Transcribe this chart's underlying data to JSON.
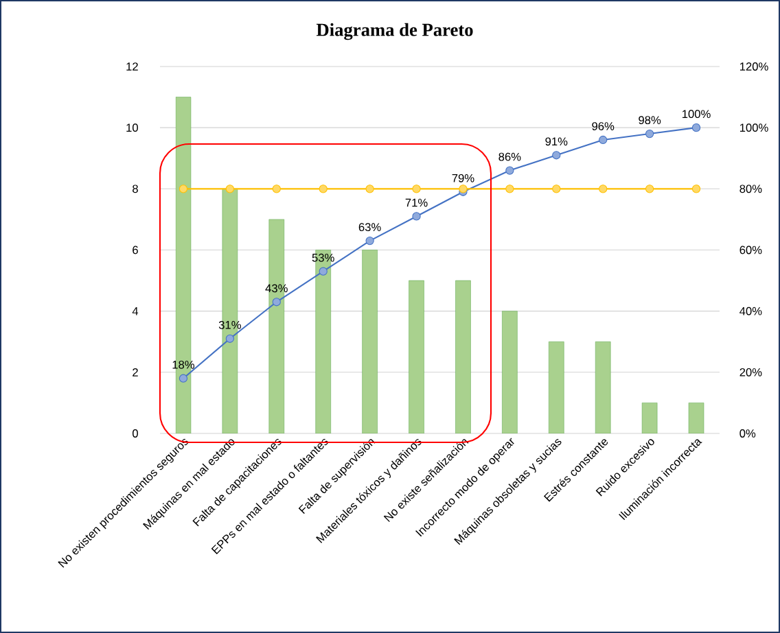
{
  "chart_data": {
    "type": "bar",
    "title": "Diagrama de Pareto",
    "categories": [
      "No existen procedimientos seguros",
      "Máquinas en mal estado",
      "Falta de capacitaciones",
      "EPPs en mal estado o faltantes",
      "Falta de supervisión",
      "Materiales tóxicos y dañinos",
      "No existe señalización",
      "Incorrecto modo de operar",
      "Máquinas obsoletas y sucias",
      "Estrés constante",
      "Ruido excesivo",
      "Iluminación incorrecta"
    ],
    "series": [
      {
        "color": "#a9d18e",
        "values": [
          11,
          8,
          7,
          6,
          6,
          5,
          5,
          4,
          3,
          3,
          1,
          1
        ]
      },
      {
        "type": "line",
        "axis": "y2",
        "color": "#4472c4",
        "values": [
          18,
          31,
          43,
          53,
          63,
          71,
          79,
          86,
          91,
          96,
          98,
          100
        ],
        "value_labels": [
          "18%",
          "31%",
          "43%",
          "53%",
          "63%",
          "71%",
          "79%",
          "86%",
          "91%",
          "96%",
          "98%",
          "100%"
        ]
      },
      {
        "type": "line",
        "axis": "y2",
        "color": "#ffc000",
        "values": [
          80,
          80,
          80,
          80,
          80,
          80,
          80,
          80,
          80,
          80,
          80,
          80
        ]
      }
    ],
    "ylim": [
      0,
      12
    ],
    "yticks": [
      0,
      2,
      4,
      6,
      8,
      10,
      12
    ],
    "y2lim": [
      0,
      120
    ],
    "y2ticks": [
      {
        "value": 0,
        "label": "0%"
      },
      {
        "value": 20,
        "label": "20%"
      },
      {
        "value": 40,
        "label": "40%"
      },
      {
        "value": 60,
        "label": "60%"
      },
      {
        "value": 80,
        "label": "80%"
      },
      {
        "value": 100,
        "label": "100%"
      },
      {
        "value": 120,
        "label": "120%"
      }
    ],
    "grid": "y",
    "marker": "circle"
  }
}
